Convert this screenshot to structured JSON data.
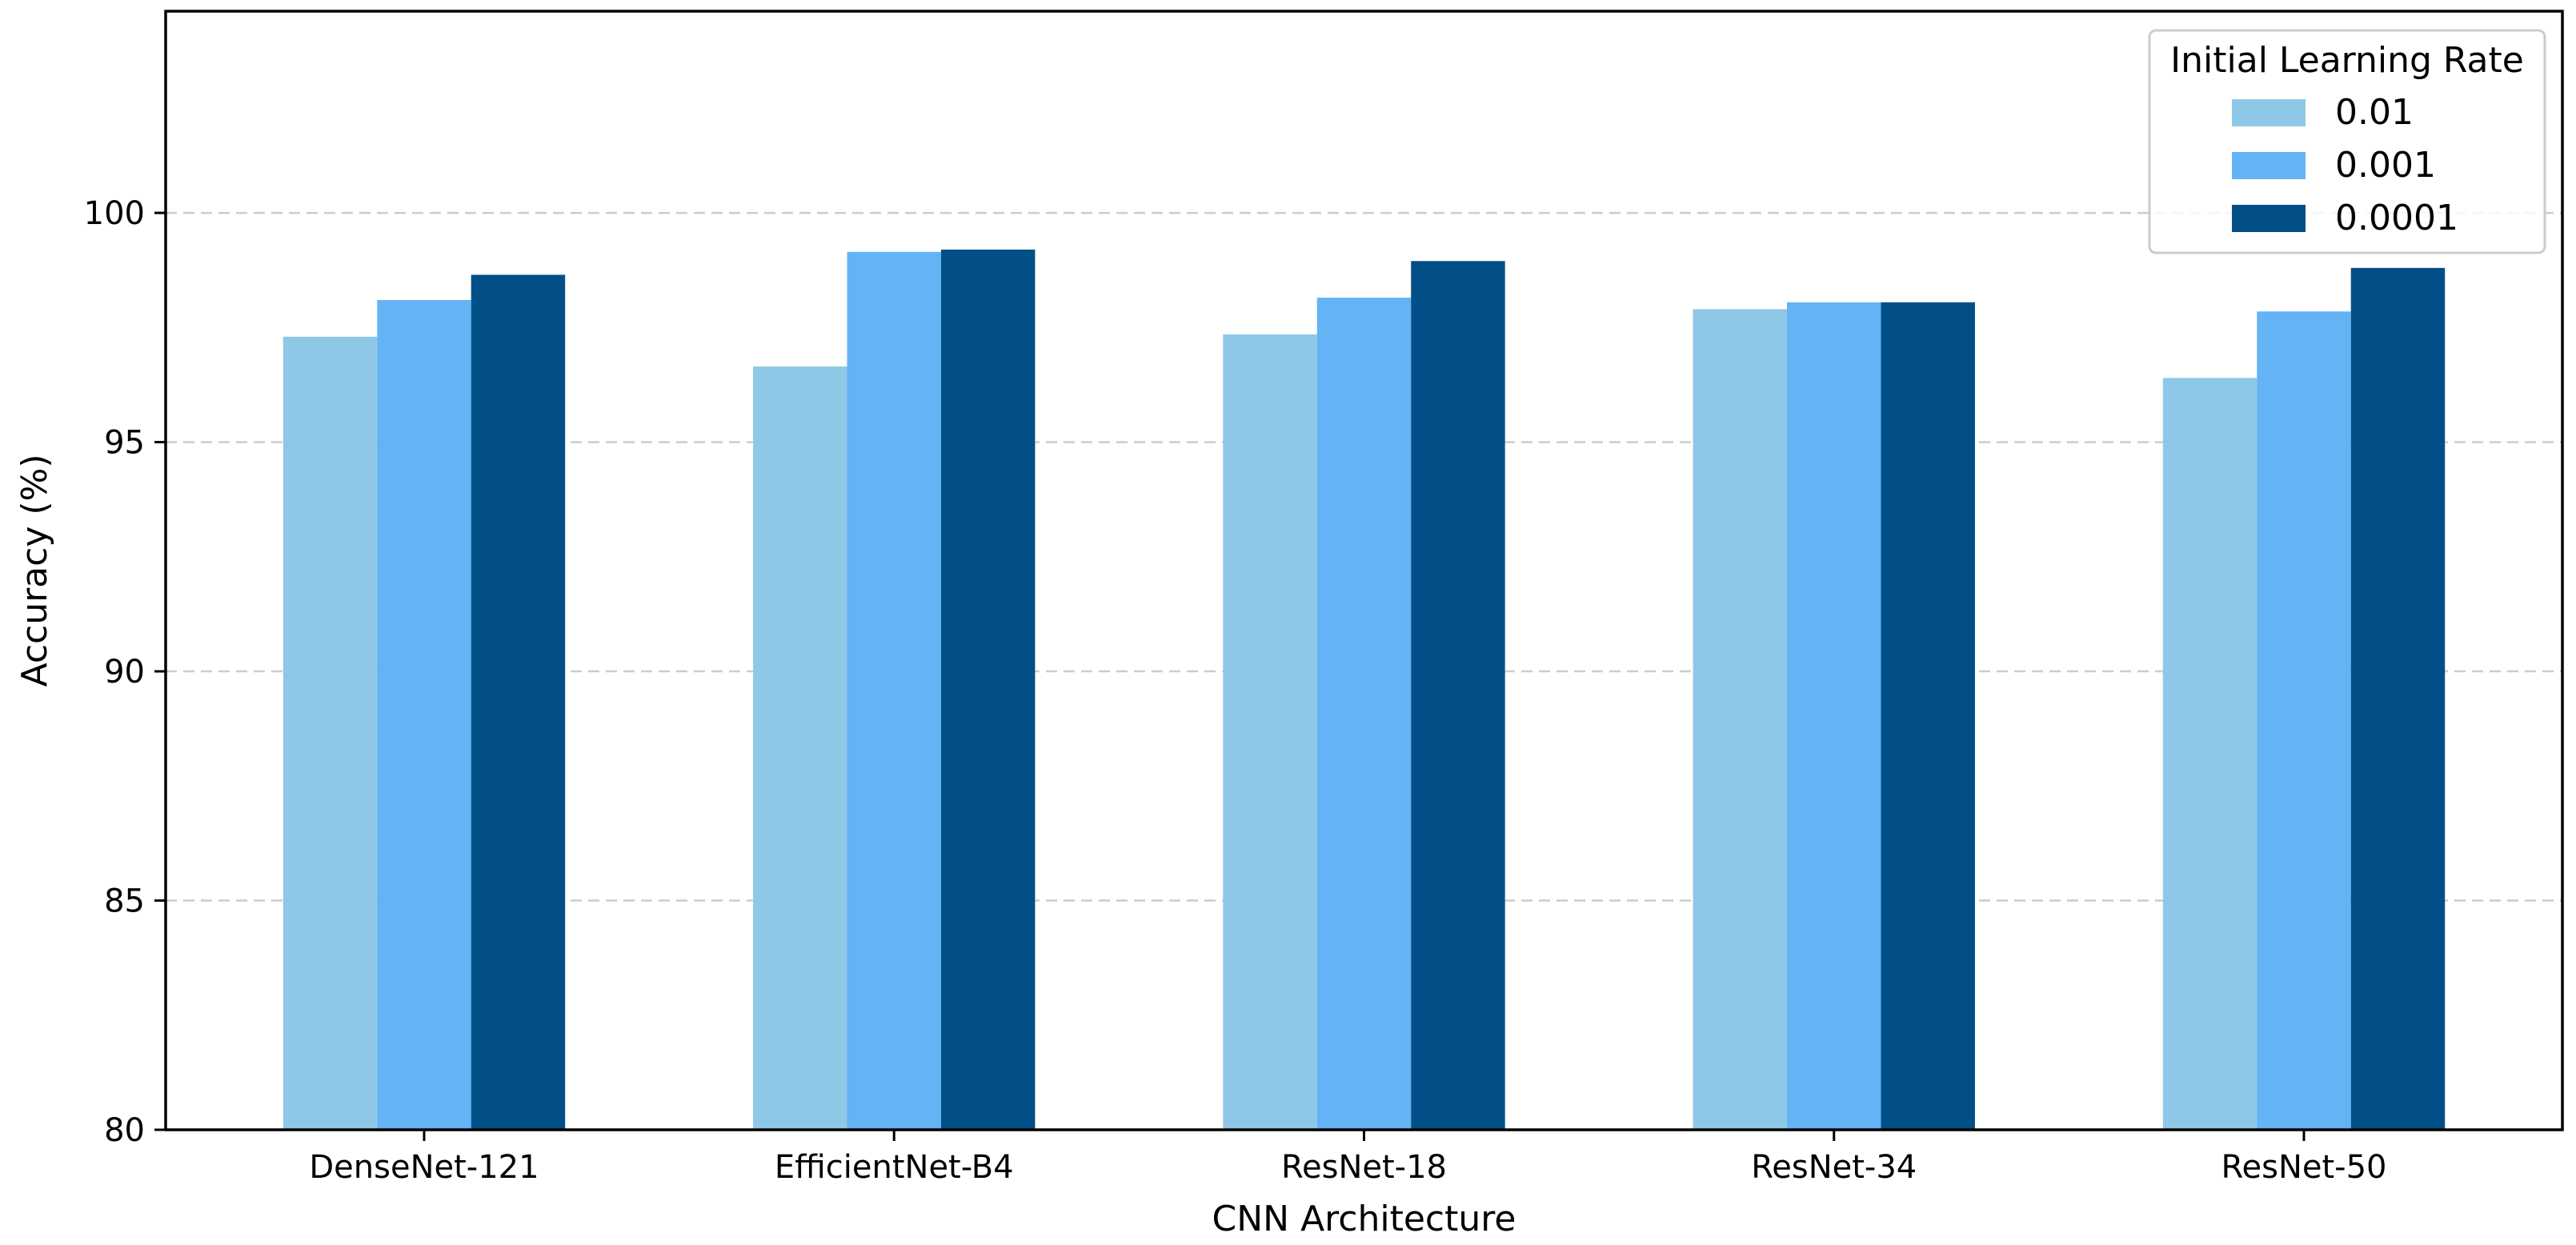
{
  "chart_data": {
    "type": "bar",
    "xlabel": "CNN Architecture",
    "ylabel": "Accuracy (%)",
    "ylim": [
      80,
      104.4
    ],
    "yticks": [
      80,
      85,
      90,
      95,
      100
    ],
    "grid": {
      "y": true,
      "style": "dashed",
      "color": "#cccccc"
    },
    "categories": [
      "DenseNet-121",
      "EfficientNet-B4",
      "ResNet-18",
      "ResNet-34",
      "ResNet-50"
    ],
    "legend": {
      "title": "Initial Learning Rate",
      "placement": "top-right"
    },
    "series": [
      {
        "name": "0.01",
        "color": "#8ec8e6",
        "values": [
          97.3,
          96.65,
          97.35,
          97.9,
          96.4
        ]
      },
      {
        "name": "0.001",
        "color": "#63b3f5",
        "values": [
          98.1,
          99.15,
          98.15,
          98.05,
          97.85
        ]
      },
      {
        "name": "0.0001",
        "color": "#024f87",
        "values": [
          98.65,
          99.2,
          98.95,
          98.05,
          98.8
        ]
      }
    ]
  }
}
